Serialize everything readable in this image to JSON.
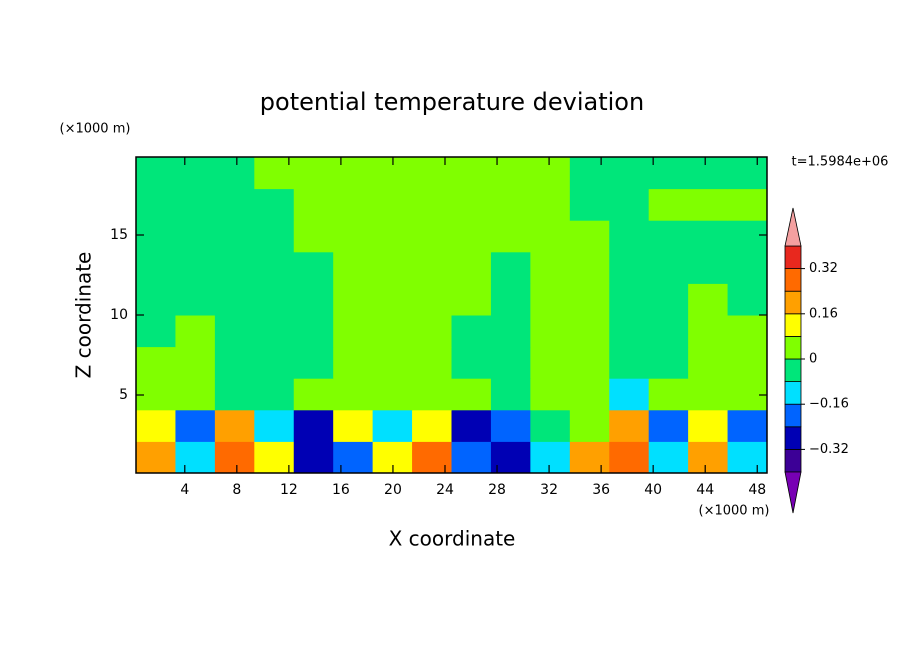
{
  "chart_data": {
    "type": "contour",
    "title": "potential temperature deviation",
    "x_label": "X coordinate",
    "y_label": "Z coordinate",
    "x_unit": "(×1000 m)",
    "y_unit": "(×1000 m)",
    "time_label": "t=1.5984e+06",
    "xlim": [
      0.25,
      48.75
    ],
    "ylim": [
      0.125,
      19.875
    ],
    "xticks": [
      4,
      8,
      12,
      16,
      20,
      24,
      28,
      32,
      36,
      40,
      44,
      48
    ],
    "yticks": [
      5,
      10,
      15
    ],
    "levels": [
      -0.4,
      -0.32,
      -0.24,
      -0.16,
      -0.08,
      0,
      0.08,
      0.16,
      0.24,
      0.32,
      0.4
    ],
    "colors": [
      "#3c0096",
      "#0000b4",
      "#0064ff",
      "#00e0ff",
      "#00e67a",
      "#80ff00",
      "#ffff00",
      "#ffa000",
      "#ff6a00",
      "#e8281e"
    ],
    "under_color": "#7800b4",
    "over_color": "#f4a0a0",
    "colorbar_ticks": [
      {
        "value": -0.32,
        "label": "−0.32"
      },
      {
        "value": -0.16,
        "label": "−0.16"
      },
      0,
      0.16,
      0.32
    ],
    "z": [
      [
        0.2,
        -0.1,
        0.3,
        0.1,
        -0.3,
        -0.2,
        0.1,
        0.3,
        -0.2,
        -0.3,
        -0.1,
        0.2,
        0.3,
        -0.1,
        0.2,
        -0.1
      ],
      [
        0.1,
        -0.2,
        0.2,
        -0.1,
        -0.3,
        0.1,
        -0.1,
        0.1,
        -0.3,
        -0.2,
        -0.05,
        0.05,
        0.2,
        -0.2,
        0.1,
        -0.2
      ],
      [
        0.04,
        0.04,
        -0.04,
        -0.04,
        0.04,
        0.04,
        0.04,
        0.04,
        0.04,
        -0.04,
        0.04,
        0.04,
        -0.1,
        0.04,
        0.04,
        0.04
      ],
      [
        0.04,
        0.04,
        -0.04,
        -0.04,
        -0.04,
        0.04,
        0.04,
        0.04,
        -0.04,
        -0.04,
        0.04,
        0.04,
        -0.04,
        -0.04,
        0.04,
        0.04
      ],
      [
        -0.04,
        0.04,
        -0.04,
        -0.04,
        -0.04,
        0.04,
        0.04,
        0.04,
        -0.04,
        -0.04,
        0.04,
        0.04,
        -0.04,
        -0.04,
        0.04,
        0.04
      ],
      [
        -0.04,
        -0.04,
        -0.04,
        -0.04,
        -0.04,
        0.04,
        0.04,
        0.04,
        0.04,
        -0.04,
        0.04,
        0.04,
        -0.04,
        -0.04,
        0.04,
        -0.04
      ],
      [
        -0.04,
        -0.04,
        -0.04,
        -0.04,
        -0.04,
        0.04,
        0.04,
        0.04,
        0.04,
        -0.04,
        0.04,
        0.04,
        -0.04,
        -0.04,
        -0.04,
        -0.04
      ],
      [
        -0.04,
        -0.04,
        -0.04,
        -0.04,
        0.04,
        0.04,
        0.04,
        0.04,
        0.04,
        0.04,
        0.04,
        0.04,
        -0.04,
        -0.04,
        -0.04,
        -0.04
      ],
      [
        -0.04,
        -0.04,
        -0.04,
        -0.04,
        0.04,
        0.04,
        0.04,
        0.04,
        0.04,
        0.04,
        0.04,
        -0.04,
        -0.04,
        0.04,
        0.04,
        0.04
      ],
      [
        -0.04,
        -0.04,
        -0.04,
        0.04,
        0.04,
        0.04,
        0.04,
        0.04,
        0.04,
        0.04,
        0.04,
        -0.04,
        -0.04,
        -0.04,
        -0.04,
        -0.04
      ]
    ]
  }
}
